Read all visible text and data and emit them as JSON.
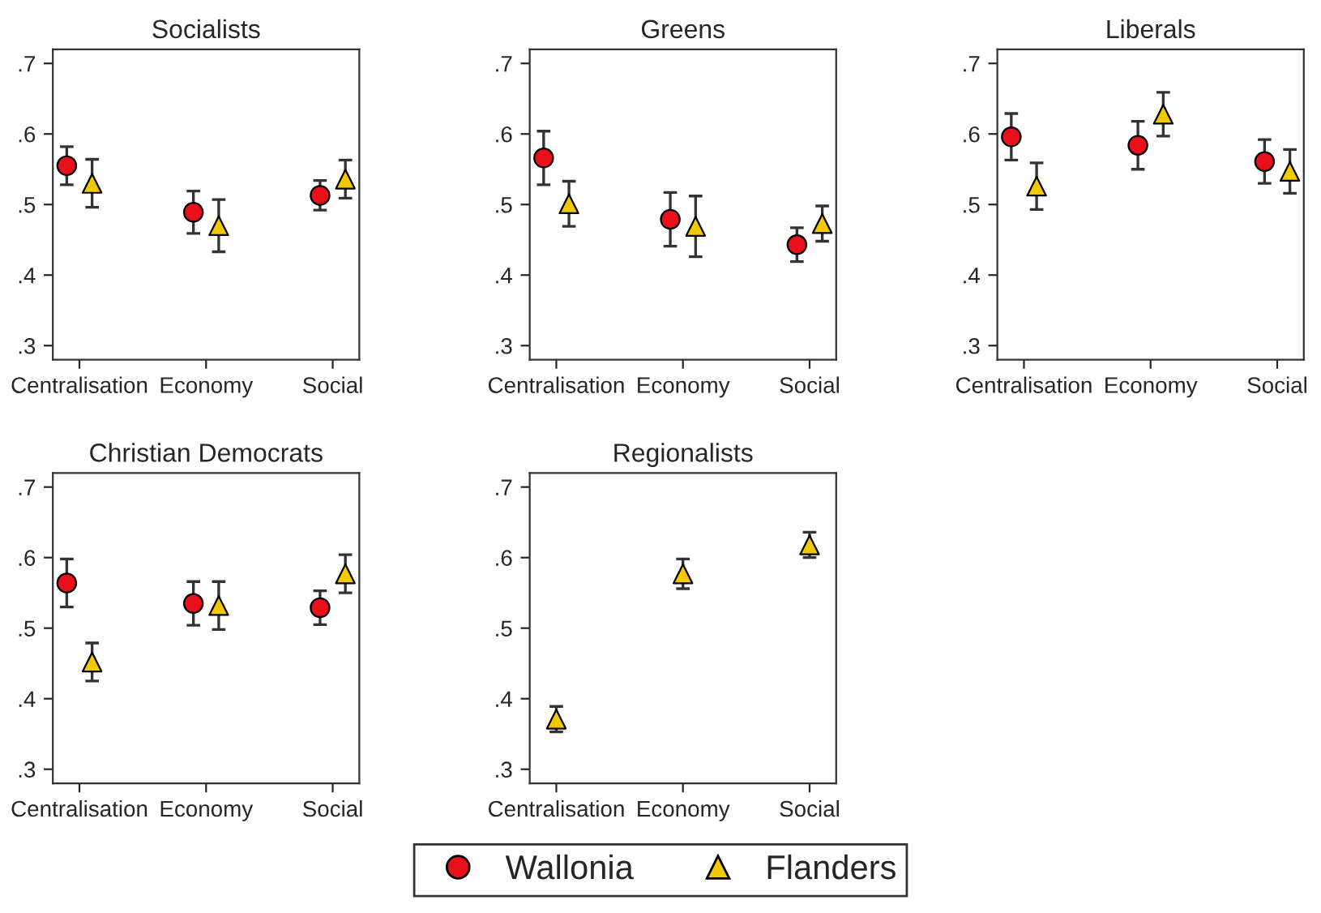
{
  "chart_data": [
    {
      "type": "scatter",
      "title": "Socialists",
      "categories": [
        "Centralisation",
        "Economy",
        "Social"
      ],
      "ylim": [
        0.28,
        0.72
      ],
      "yticks": [
        {
          "value": 0.3,
          "label": ".3"
        },
        {
          "value": 0.4,
          "label": ".4"
        },
        {
          "value": 0.5,
          "label": ".5"
        },
        {
          "value": 0.6,
          "label": ".6"
        },
        {
          "value": 0.7,
          "label": ".7"
        }
      ],
      "grid": false,
      "legend": "bottom",
      "series": [
        {
          "name": "Wallonia",
          "color": "#e8101a",
          "marker": "circle",
          "values": [
            0.555,
            0.489,
            0.513
          ],
          "errors": [
            0.027,
            0.03,
            0.021
          ]
        },
        {
          "name": "Flanders",
          "color": "#f2c800",
          "marker": "triangle",
          "values": [
            0.53,
            0.47,
            0.536
          ],
          "errors": [
            0.034,
            0.037,
            0.027
          ]
        }
      ]
    },
    {
      "type": "scatter",
      "title": "Greens",
      "categories": [
        "Centralisation",
        "Economy",
        "Social"
      ],
      "ylim": [
        0.28,
        0.72
      ],
      "yticks": [
        {
          "value": 0.3,
          "label": ".3"
        },
        {
          "value": 0.4,
          "label": ".4"
        },
        {
          "value": 0.5,
          "label": ".5"
        },
        {
          "value": 0.6,
          "label": ".6"
        },
        {
          "value": 0.7,
          "label": ".7"
        }
      ],
      "grid": false,
      "legend": "bottom",
      "series": [
        {
          "name": "Wallonia",
          "color": "#e8101a",
          "marker": "circle",
          "values": [
            0.566,
            0.479,
            0.443
          ],
          "errors": [
            0.038,
            0.038,
            0.024
          ]
        },
        {
          "name": "Flanders",
          "color": "#f2c800",
          "marker": "triangle",
          "values": [
            0.501,
            0.469,
            0.473
          ],
          "errors": [
            0.032,
            0.043,
            0.025
          ]
        }
      ]
    },
    {
      "type": "scatter",
      "title": "Liberals",
      "categories": [
        "Centralisation",
        "Economy",
        "Social"
      ],
      "ylim": [
        0.28,
        0.72
      ],
      "yticks": [
        {
          "value": 0.3,
          "label": ".3"
        },
        {
          "value": 0.4,
          "label": ".4"
        },
        {
          "value": 0.5,
          "label": ".5"
        },
        {
          "value": 0.6,
          "label": ".6"
        },
        {
          "value": 0.7,
          "label": ".7"
        }
      ],
      "grid": false,
      "legend": "bottom",
      "series": [
        {
          "name": "Wallonia",
          "color": "#e8101a",
          "marker": "circle",
          "values": [
            0.596,
            0.584,
            0.561
          ],
          "errors": [
            0.033,
            0.034,
            0.031
          ]
        },
        {
          "name": "Flanders",
          "color": "#f2c800",
          "marker": "triangle",
          "values": [
            0.526,
            0.628,
            0.547
          ],
          "errors": [
            0.033,
            0.031,
            0.031
          ]
        }
      ]
    },
    {
      "type": "scatter",
      "title": "Christian Democrats",
      "categories": [
        "Centralisation",
        "Economy",
        "Social"
      ],
      "ylim": [
        0.28,
        0.72
      ],
      "yticks": [
        {
          "value": 0.3,
          "label": ".3"
        },
        {
          "value": 0.4,
          "label": ".4"
        },
        {
          "value": 0.5,
          "label": ".5"
        },
        {
          "value": 0.6,
          "label": ".6"
        },
        {
          "value": 0.7,
          "label": ".7"
        }
      ],
      "grid": false,
      "legend": "bottom",
      "series": [
        {
          "name": "Wallonia",
          "color": "#e8101a",
          "marker": "circle",
          "values": [
            0.564,
            0.535,
            0.529
          ],
          "errors": [
            0.034,
            0.031,
            0.024
          ]
        },
        {
          "name": "Flanders",
          "color": "#f2c800",
          "marker": "triangle",
          "values": [
            0.452,
            0.532,
            0.577
          ],
          "errors": [
            0.027,
            0.034,
            0.027
          ]
        }
      ]
    },
    {
      "type": "scatter",
      "title": "Regionalists",
      "categories": [
        "Centralisation",
        "Economy",
        "Social"
      ],
      "ylim": [
        0.28,
        0.72
      ],
      "yticks": [
        {
          "value": 0.3,
          "label": ".3"
        },
        {
          "value": 0.4,
          "label": ".4"
        },
        {
          "value": 0.5,
          "label": ".5"
        },
        {
          "value": 0.6,
          "label": ".6"
        },
        {
          "value": 0.7,
          "label": ".7"
        }
      ],
      "grid": false,
      "legend": "bottom",
      "series": [
        {
          "name": "Flanders",
          "color": "#f2c800",
          "marker": "triangle",
          "values": [
            0.371,
            0.577,
            0.618
          ],
          "errors": [
            0.018,
            0.021,
            0.018
          ]
        }
      ]
    }
  ]
}
